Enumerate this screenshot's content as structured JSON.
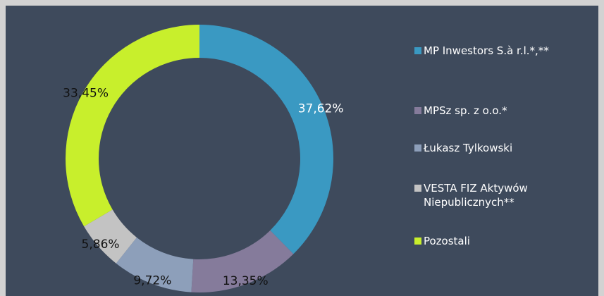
{
  "chart_data": {
    "type": "donut",
    "categories": [
      "MP Inwestors S.à r.l.*,**",
      "MPSz sp. z o.o.*",
      "Łukasz Tylkowski",
      "VESTA FIZ Aktywów Niepublicznych**",
      "Pozostali"
    ],
    "values": [
      37.62,
      13.35,
      9.72,
      5.86,
      33.45
    ],
    "value_labels": [
      "37,62%",
      "13,35%",
      "9,72%",
      "5,86%",
      "33,45%"
    ],
    "colors": [
      "#3a99c2",
      "#857b9b",
      "#8d9fba",
      "#c3c3c3",
      "#c8ef2c"
    ],
    "legend": "right"
  }
}
